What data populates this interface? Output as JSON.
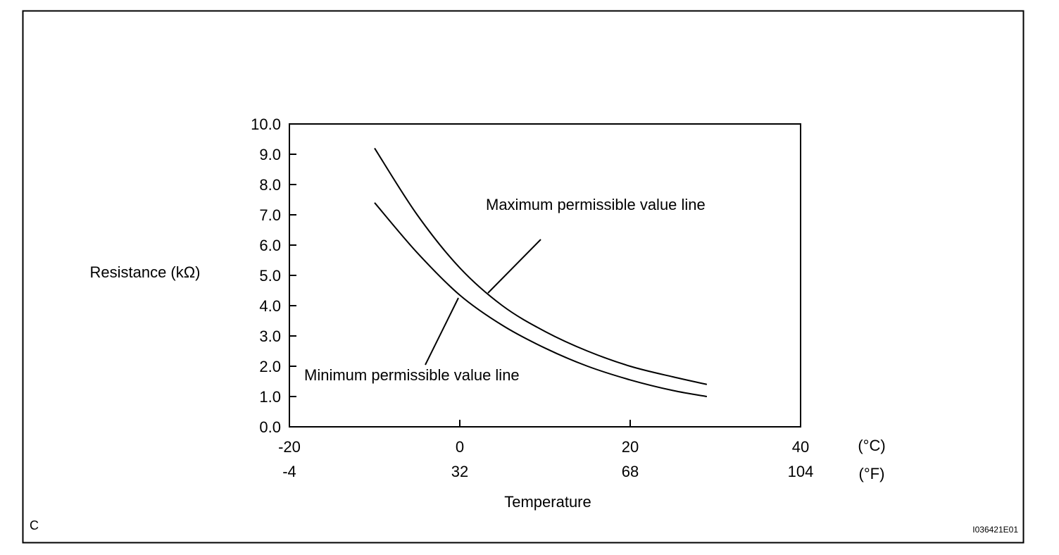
{
  "corner_label": "C",
  "figure_code": "I036421E01",
  "chart_data": {
    "type": "line",
    "ylabel": "Resistance (kΩ)",
    "xlabel": "Temperature",
    "xlim": [
      -20,
      40
    ],
    "ylim": [
      0,
      10
    ],
    "y_ticks": [
      "0.0",
      "1.0",
      "2.0",
      "3.0",
      "4.0",
      "5.0",
      "6.0",
      "7.0",
      "8.0",
      "9.0",
      "10.0"
    ],
    "x_ticks_c": [
      -20,
      0,
      20,
      40
    ],
    "x_ticks_f": [
      -4,
      32,
      68,
      104
    ],
    "x_unit_c": "(°C)",
    "x_unit_f": "(°F)",
    "grid": false,
    "series": [
      {
        "name": "Maximum permissible value line",
        "x": [
          -10,
          -5,
          0,
          5,
          10,
          15,
          20,
          25,
          29
        ],
        "y": [
          9.2,
          7.0,
          5.25,
          4.0,
          3.15,
          2.5,
          2.0,
          1.65,
          1.4
        ]
      },
      {
        "name": "Minimum permissible value line",
        "x": [
          -10,
          -5,
          0,
          5,
          10,
          15,
          20,
          25,
          29
        ],
        "y": [
          7.4,
          5.75,
          4.35,
          3.35,
          2.6,
          2.0,
          1.55,
          1.2,
          1.0
        ]
      }
    ],
    "annotations": [
      {
        "text": "Maximum permissible value line",
        "points_to": {
          "series": 0,
          "x": 3.5
        }
      },
      {
        "text": "Minimum permissible value line",
        "points_to": {
          "series": 1,
          "x": 0
        }
      }
    ]
  }
}
